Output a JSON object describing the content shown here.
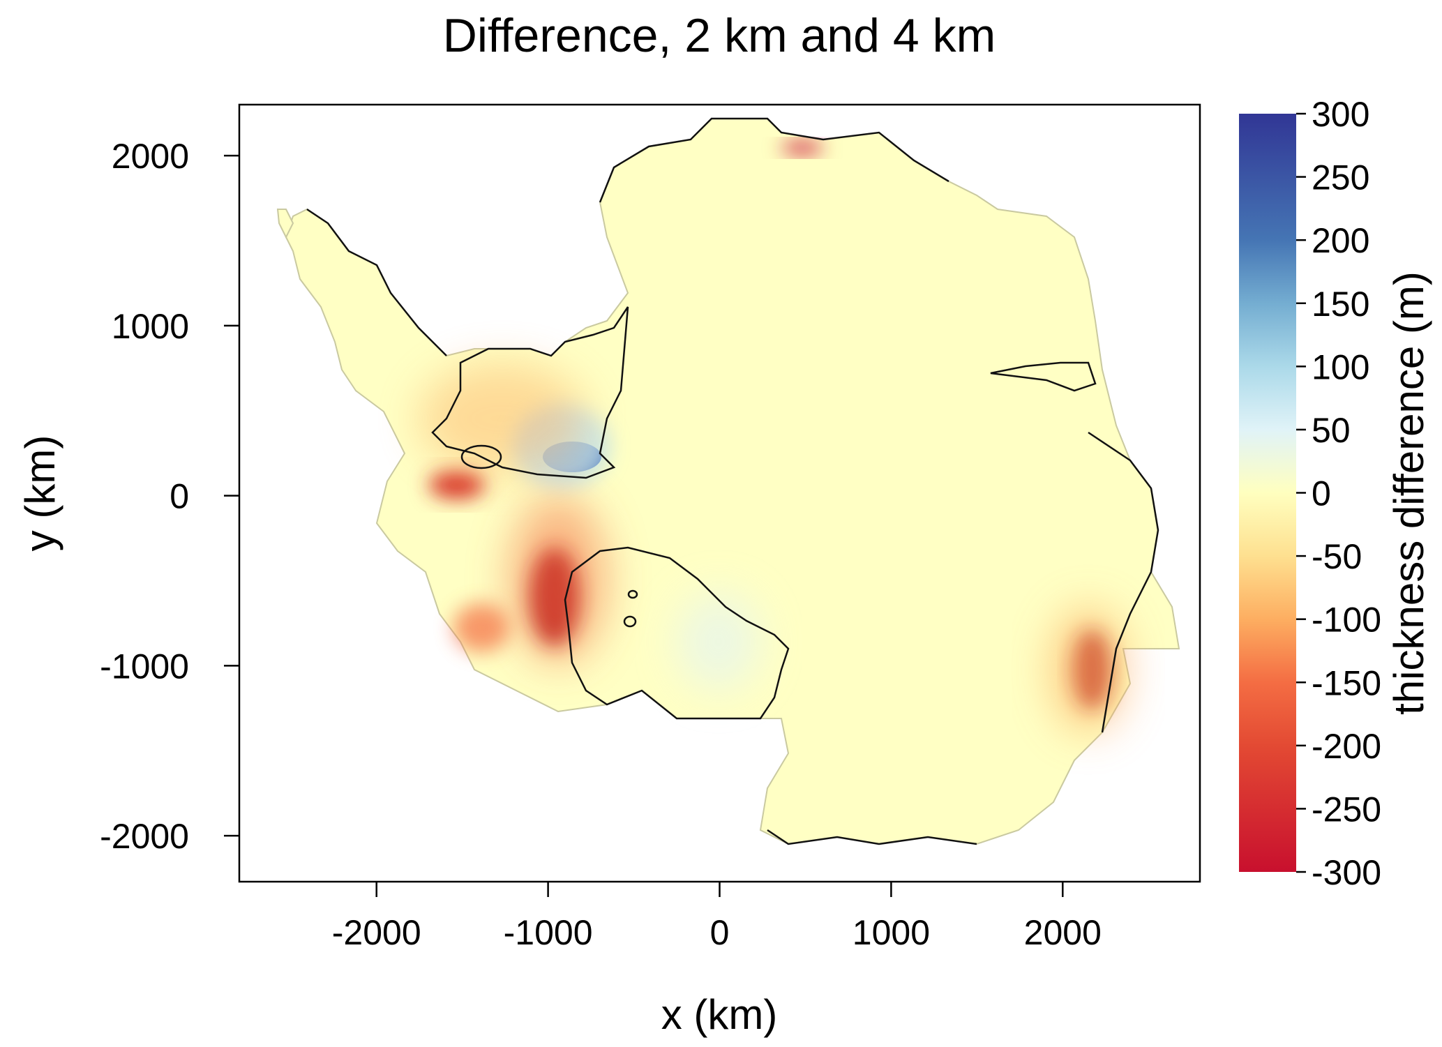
{
  "title": "Difference, 2 km and 4 km",
  "x_axis": {
    "label": "x (km)",
    "range": [
      -2800,
      2800
    ],
    "ticks": [
      {
        "value": -2000,
        "label": "-2000"
      },
      {
        "value": -1000,
        "label": "-1000"
      },
      {
        "value": 0,
        "label": "0"
      },
      {
        "value": 1000,
        "label": "1000"
      },
      {
        "value": 2000,
        "label": "2000"
      }
    ]
  },
  "y_axis": {
    "label": "y (km)",
    "range": [
      -2270,
      2300
    ],
    "ticks": [
      {
        "value": 2000,
        "label": "2000"
      },
      {
        "value": 1000,
        "label": "1000"
      },
      {
        "value": 0,
        "label": "0"
      },
      {
        "value": -1000,
        "label": "-1000"
      },
      {
        "value": -2000,
        "label": "-2000"
      }
    ]
  },
  "colorbar": {
    "label": "thickness difference (m)",
    "range": [
      -300,
      300
    ],
    "stops": [
      {
        "value": 300,
        "color": "#313695"
      },
      {
        "value": 200,
        "color": "#4575b4"
      },
      {
        "value": 150,
        "color": "#74add1"
      },
      {
        "value": 100,
        "color": "#abd9e9"
      },
      {
        "value": 50,
        "color": "#e0f3f8"
      },
      {
        "value": 0,
        "color": "#ffffbf"
      },
      {
        "value": -50,
        "color": "#fee090"
      },
      {
        "value": -100,
        "color": "#fdae61"
      },
      {
        "value": -150,
        "color": "#f46d43"
      },
      {
        "value": -200,
        "color": "#e34a33"
      },
      {
        "value": -300,
        "color": "#c8102e"
      }
    ],
    "ticks": [
      {
        "value": 300,
        "label": "300"
      },
      {
        "value": 250,
        "label": "250"
      },
      {
        "value": 200,
        "label": "200"
      },
      {
        "value": 150,
        "label": "150"
      },
      {
        "value": 100,
        "label": "100"
      },
      {
        "value": 50,
        "label": "50"
      },
      {
        "value": 0,
        "label": "0"
      },
      {
        "value": -50,
        "label": "-50"
      },
      {
        "value": -100,
        "label": "-100"
      },
      {
        "value": -150,
        "label": "-150"
      },
      {
        "value": -200,
        "label": "-200"
      },
      {
        "value": -250,
        "label": "-250"
      },
      {
        "value": -300,
        "label": "-300"
      }
    ]
  },
  "map": {
    "background_color": "#ffffc4",
    "coastline_color": "#111111"
  }
}
